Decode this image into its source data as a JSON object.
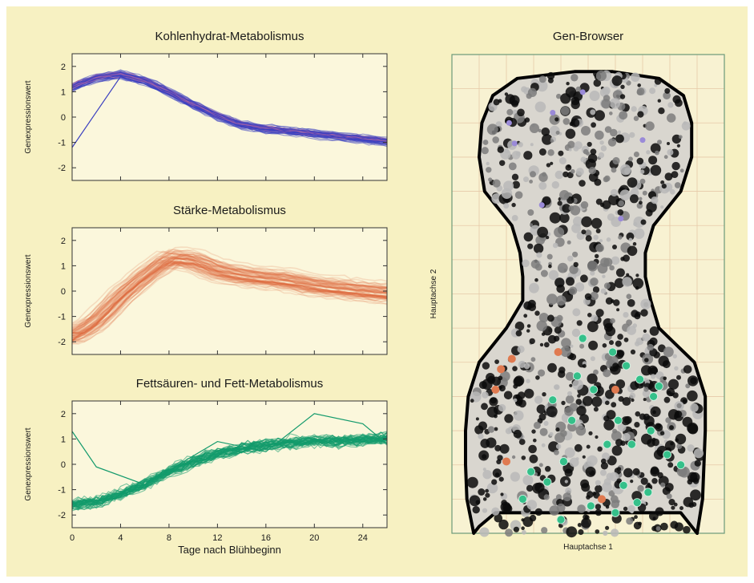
{
  "chart_data": [
    {
      "type": "line",
      "title": "Kohlenhydrat-Metabolismus",
      "ylabel": "Genexpressionswert",
      "xlabel": "",
      "xlim": [
        0,
        26
      ],
      "ylim": [
        -2.5,
        2.5
      ],
      "yticks": [
        -2,
        -1,
        0,
        1,
        2
      ],
      "xticks": [
        0,
        4,
        8,
        12,
        16,
        20,
        24
      ],
      "show_xtick_labels": false,
      "color": "#3a3fc0",
      "accent": "#c06aa0",
      "x": [
        0,
        2,
        4,
        6,
        8,
        10,
        12,
        14,
        16,
        18,
        20,
        22,
        24,
        26
      ],
      "series_center": [
        1.2,
        1.55,
        1.7,
        1.45,
        1.0,
        0.5,
        0.05,
        -0.3,
        -0.45,
        -0.55,
        -0.65,
        -0.75,
        -0.85,
        -0.95
      ],
      "series_outlier": [
        -1.2,
        0.2,
        1.6,
        1.3,
        0.9,
        0.4,
        0.0,
        -0.4,
        -0.5,
        -0.6,
        -0.7,
        -0.8,
        -0.9,
        -1.0
      ]
    },
    {
      "type": "line",
      "title": "Stärke-Metabolismus",
      "ylabel": "Genexpressionswert",
      "xlabel": "",
      "xlim": [
        0,
        26
      ],
      "ylim": [
        -2.5,
        2.5
      ],
      "yticks": [
        -2,
        -1,
        0,
        1,
        2
      ],
      "xticks": [
        0,
        4,
        8,
        12,
        16,
        20,
        24
      ],
      "show_xtick_labels": false,
      "color": "#e0633a",
      "accent": "#f0a080",
      "x": [
        0,
        2,
        4,
        6,
        8,
        10,
        12,
        14,
        16,
        18,
        20,
        22,
        24,
        26
      ],
      "series_center": [
        -1.8,
        -1.2,
        -0.2,
        0.6,
        1.3,
        1.2,
        0.8,
        0.6,
        0.5,
        0.4,
        0.2,
        0.1,
        0.0,
        -0.1
      ]
    },
    {
      "type": "line",
      "title": "Fettsäuren- und Fett-Metabolismus",
      "ylabel": "Genexpressionswert",
      "xlabel": "Tage nach Blühbeginn",
      "xlim": [
        0,
        26
      ],
      "ylim": [
        -2.5,
        2.5
      ],
      "yticks": [
        -2,
        -1,
        0,
        1,
        2
      ],
      "xticks": [
        0,
        4,
        8,
        12,
        16,
        20,
        24
      ],
      "xtick_labels": [
        "0",
        "4",
        "8",
        "12",
        "16",
        "20",
        "24"
      ],
      "show_xtick_labels": true,
      "color": "#139a6c",
      "accent": "#0f7a57",
      "x": [
        0,
        2,
        4,
        6,
        8,
        10,
        12,
        14,
        16,
        18,
        20,
        22,
        24,
        26
      ],
      "series_center": [
        -1.6,
        -1.5,
        -1.2,
        -0.8,
        -0.3,
        0.1,
        0.4,
        0.6,
        0.75,
        0.85,
        0.9,
        0.9,
        0.95,
        1.0
      ]
    },
    {
      "type": "scatter",
      "title": "Gen-Browser",
      "xlabel": "Hauptachse 1",
      "ylabel": "Hauptachse 2",
      "xlim": [
        0,
        10
      ],
      "ylim": [
        0,
        14
      ],
      "grid": true,
      "background": "#111111",
      "outline": "#000000",
      "highlight_colors": {
        "green": "#35c08a",
        "orange": "#e07a50",
        "violet": "#9a8ad8"
      },
      "highlight_green": [
        [
          4.8,
          5.7
        ],
        [
          5.9,
          5.3
        ],
        [
          6.4,
          4.9
        ],
        [
          4.6,
          4.6
        ],
        [
          5.2,
          4.2
        ],
        [
          6.9,
          4.5
        ],
        [
          7.4,
          4.0
        ],
        [
          7.6,
          4.3
        ],
        [
          3.7,
          3.9
        ],
        [
          4.4,
          3.3
        ],
        [
          6.1,
          3.3
        ],
        [
          7.3,
          3.0
        ],
        [
          5.7,
          2.6
        ],
        [
          6.6,
          2.6
        ],
        [
          4.1,
          2.1
        ],
        [
          2.9,
          1.8
        ],
        [
          3.5,
          1.5
        ],
        [
          6.3,
          1.4
        ],
        [
          7.2,
          1.2
        ],
        [
          2.6,
          1.0
        ],
        [
          5.1,
          0.8
        ],
        [
          6.0,
          0.6
        ],
        [
          4.0,
          0.4
        ],
        [
          7.9,
          2.3
        ],
        [
          8.4,
          2.0
        ],
        [
          6.8,
          0.9
        ]
      ],
      "highlight_orange": [
        [
          1.8,
          4.8
        ],
        [
          1.6,
          4.2
        ],
        [
          2.2,
          5.1
        ],
        [
          2.0,
          2.1
        ],
        [
          5.5,
          1.0
        ],
        [
          6.0,
          4.2
        ],
        [
          3.9,
          5.3
        ]
      ],
      "highlight_violet": [
        [
          2.1,
          12.0
        ],
        [
          2.3,
          11.4
        ],
        [
          3.7,
          12.3
        ],
        [
          7.0,
          11.5
        ],
        [
          4.8,
          12.9
        ],
        [
          3.3,
          9.6
        ],
        [
          6.2,
          9.2
        ]
      ]
    }
  ]
}
